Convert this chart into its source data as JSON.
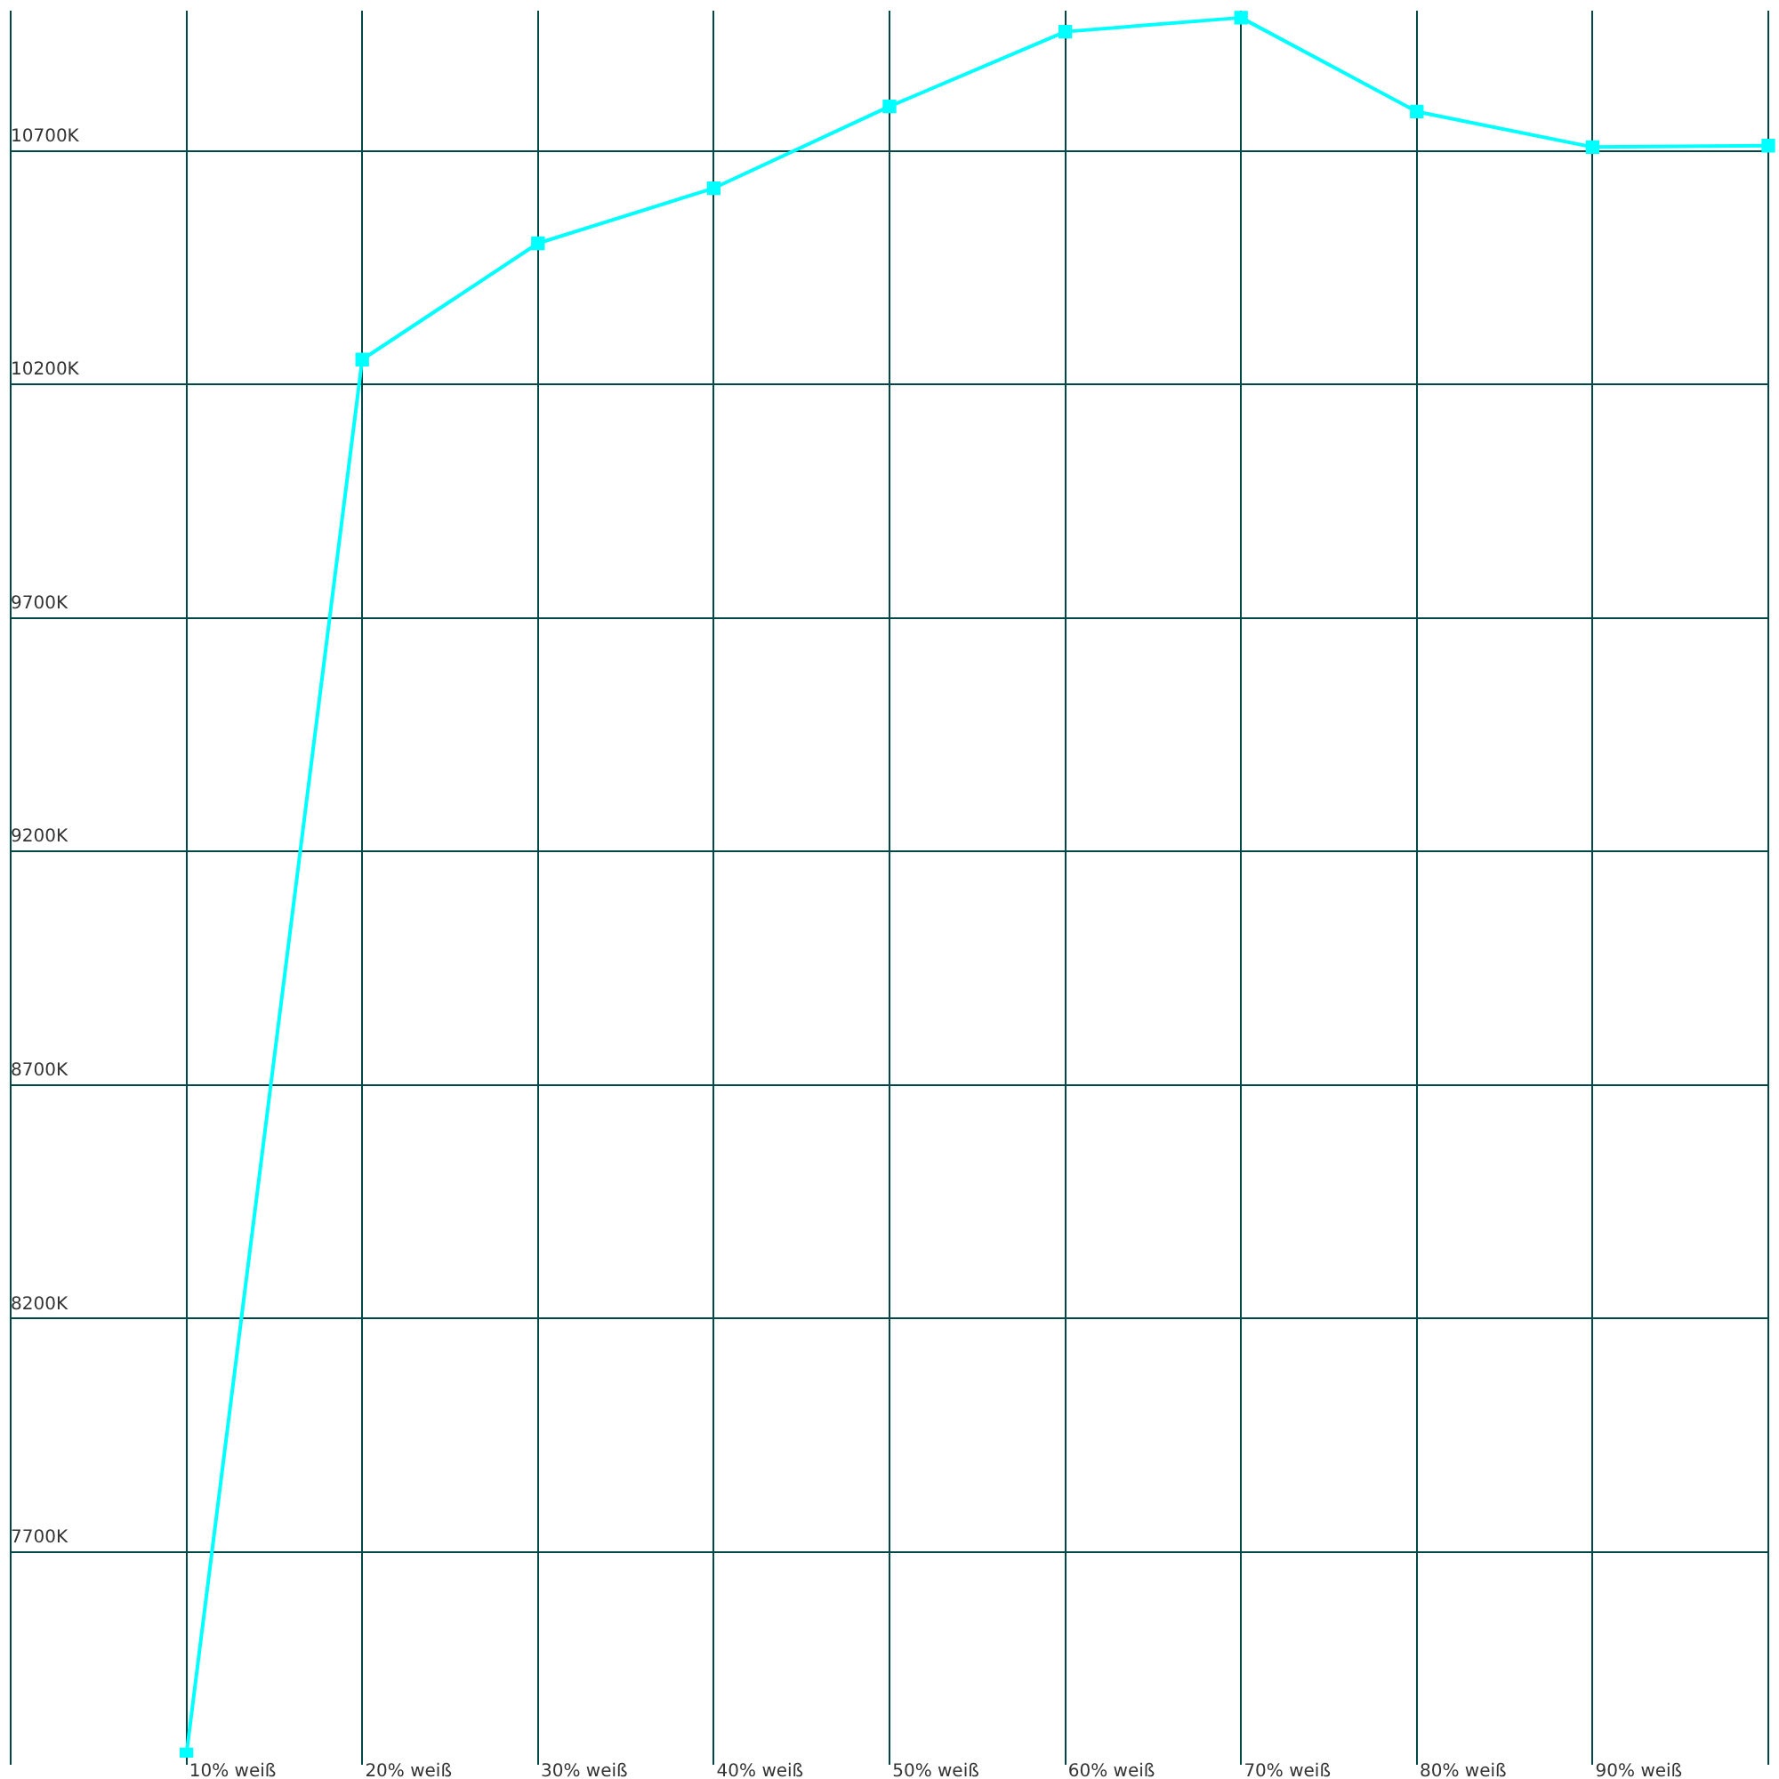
{
  "chart_data": {
    "type": "line",
    "categories": [
      null,
      "10% weiß",
      "20% weiß",
      "30% weiß",
      "40% weiß",
      "50% weiß",
      "60% weiß",
      "70% weiß",
      "80% weiß",
      "90% weiß",
      null
    ],
    "series": [
      {
        "color": "#00ffff",
        "values": [
          null,
          7267,
          10253,
          10502,
          10620,
          10795,
          10955,
          10985,
          10784,
          10708,
          10711
        ]
      }
    ],
    "ylim": [
      7260,
      11000
    ],
    "yticks": [
      {
        "value": 7700,
        "label": "7700K"
      },
      {
        "value": 8200,
        "label": "8200K"
      },
      {
        "value": 8700,
        "label": "8700K"
      },
      {
        "value": 9200,
        "label": "9200K"
      },
      {
        "value": 9700,
        "label": "9700K"
      },
      {
        "value": 10200,
        "label": "10200K"
      },
      {
        "value": 10700,
        "label": "10700K"
      }
    ],
    "grid": true,
    "legend": false,
    "marker": "square",
    "line_style": "solid"
  }
}
